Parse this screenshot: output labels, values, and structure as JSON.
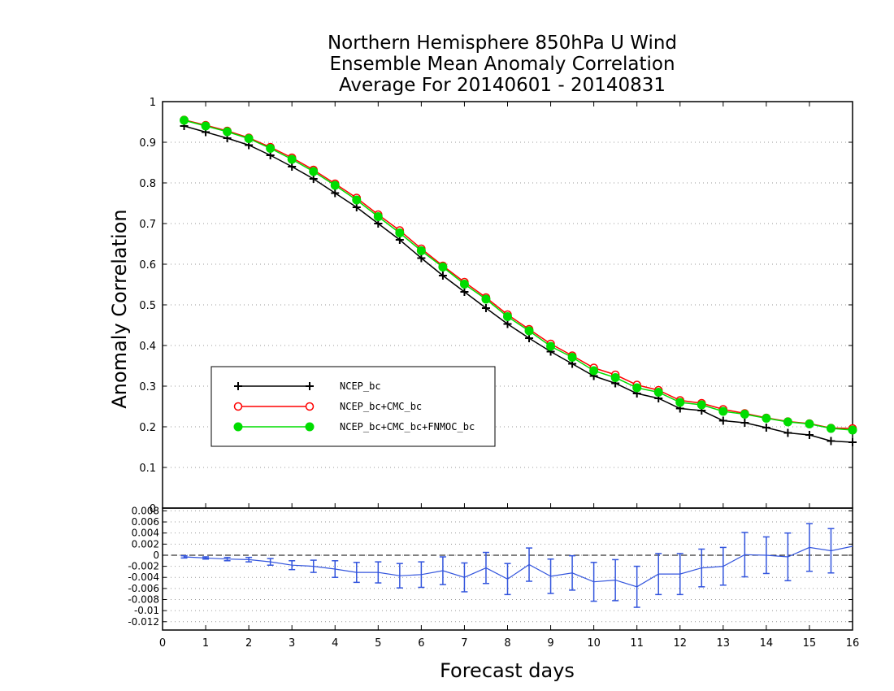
{
  "chart_data": [
    {
      "type": "line",
      "title": [
        "Northern Hemisphere 850hPa U Wind",
        "Ensemble Mean Anomaly Correlation",
        "Average For 20140601 - 20140831"
      ],
      "xlabel": "Forecast days",
      "ylabel": "Anomaly Correlation",
      "xlim": [
        0,
        16
      ],
      "ylim": [
        0,
        1
      ],
      "xticks": [
        "0",
        "1",
        "2",
        "3",
        "4",
        "5",
        "6",
        "7",
        "8",
        "9",
        "10",
        "11",
        "12",
        "13",
        "14",
        "15",
        "16"
      ],
      "yticks": [
        "0",
        "0.1",
        "0.2",
        "0.3",
        "0.4",
        "0.5",
        "0.6",
        "0.7",
        "0.8",
        "0.9",
        "1"
      ],
      "grid": "horizontal dotted",
      "legend_position": "lower-left",
      "x": [
        0.5,
        1,
        1.5,
        2,
        2.5,
        3,
        3.5,
        4,
        4.5,
        5,
        5.5,
        6,
        6.5,
        7,
        7.5,
        8,
        8.5,
        9,
        9.5,
        10,
        10.5,
        11,
        11.5,
        12,
        12.5,
        13,
        13.5,
        14,
        14.5,
        15,
        15.5,
        16
      ],
      "series": [
        {
          "name": "NCEP_bc",
          "color": "#000000",
          "marker": "plus",
          "values": [
            0.94,
            0.925,
            0.91,
            0.893,
            0.868,
            0.84,
            0.81,
            0.775,
            0.74,
            0.7,
            0.66,
            0.615,
            0.572,
            0.532,
            0.492,
            0.453,
            0.418,
            0.385,
            0.355,
            0.325,
            0.307,
            0.282,
            0.27,
            0.245,
            0.24,
            0.215,
            0.21,
            0.198,
            0.185,
            0.18,
            0.165,
            0.162
          ]
        },
        {
          "name": "NCEP_bc+CMC_bc",
          "color": "#ff0000",
          "marker": "open-circle",
          "values": [
            0.955,
            0.942,
            0.928,
            0.911,
            0.888,
            0.862,
            0.832,
            0.798,
            0.763,
            0.722,
            0.683,
            0.638,
            0.596,
            0.556,
            0.518,
            0.476,
            0.44,
            0.404,
            0.375,
            0.345,
            0.328,
            0.303,
            0.29,
            0.265,
            0.258,
            0.243,
            0.233,
            0.222,
            0.213,
            0.208,
            0.197,
            0.196
          ]
        },
        {
          "name": "NCEP_bc+CMC_bc+FNMOC_bc",
          "color": "#00dd00",
          "marker": "filled-circle",
          "values": [
            0.954,
            0.94,
            0.926,
            0.909,
            0.885,
            0.858,
            0.828,
            0.794,
            0.758,
            0.717,
            0.677,
            0.633,
            0.593,
            0.551,
            0.514,
            0.471,
            0.436,
            0.398,
            0.371,
            0.338,
            0.321,
            0.296,
            0.285,
            0.26,
            0.254,
            0.238,
            0.231,
            0.221,
            0.212,
            0.207,
            0.196,
            0.192
          ]
        }
      ]
    },
    {
      "type": "line",
      "subtype": "difference with error bars",
      "xlabel": "Forecast days",
      "xlim": [
        0,
        16
      ],
      "ylim": [
        -0.0135,
        0.0085
      ],
      "xticks": [
        "0",
        "1",
        "2",
        "3",
        "4",
        "5",
        "6",
        "7",
        "8",
        "9",
        "10",
        "11",
        "12",
        "13",
        "14",
        "15",
        "16"
      ],
      "yticks": [
        "0.008",
        "0.006",
        "0.004",
        "0.002",
        "0",
        "-0.002",
        "-0.004",
        "-0.006",
        "-0.008",
        "-0.01",
        "-0.012"
      ],
      "grid": "horizontal dotted",
      "reference_line": 0,
      "x": [
        0.5,
        1,
        1.5,
        2,
        2.5,
        3,
        3.5,
        4,
        4.5,
        5,
        5.5,
        6,
        6.5,
        7,
        7.5,
        8,
        8.5,
        9,
        9.5,
        10,
        10.5,
        11,
        11.5,
        12,
        12.5,
        13,
        13.5,
        14,
        14.5,
        15,
        15.5,
        16
      ],
      "series": [
        {
          "color": "#3355dd",
          "values": [
            -0.0003,
            -0.0005,
            -0.0007,
            -0.0008,
            -0.0012,
            -0.0018,
            -0.002,
            -0.0025,
            -0.0031,
            -0.0031,
            -0.0037,
            -0.0035,
            -0.0028,
            -0.004,
            -0.0023,
            -0.0043,
            -0.0017,
            -0.0038,
            -0.0032,
            -0.0048,
            -0.0045,
            -0.0057,
            -0.0034,
            -0.0034,
            -0.0023,
            -0.002,
            0.0001,
            0.0,
            -0.0003,
            0.0014,
            0.0008,
            0.0016
          ],
          "error": [
            0.0002,
            0.0002,
            0.0003,
            0.0004,
            0.0006,
            0.0008,
            0.0011,
            0.0015,
            0.0018,
            0.0019,
            0.0022,
            0.0023,
            0.0025,
            0.0026,
            0.0028,
            0.0028,
            0.003,
            0.0031,
            0.0031,
            0.0035,
            0.0037,
            0.0037,
            0.0037,
            0.0037,
            0.0034,
            0.0034,
            0.004,
            0.0033,
            0.0043,
            0.0043,
            0.004,
            0.0
          ]
        }
      ]
    }
  ]
}
